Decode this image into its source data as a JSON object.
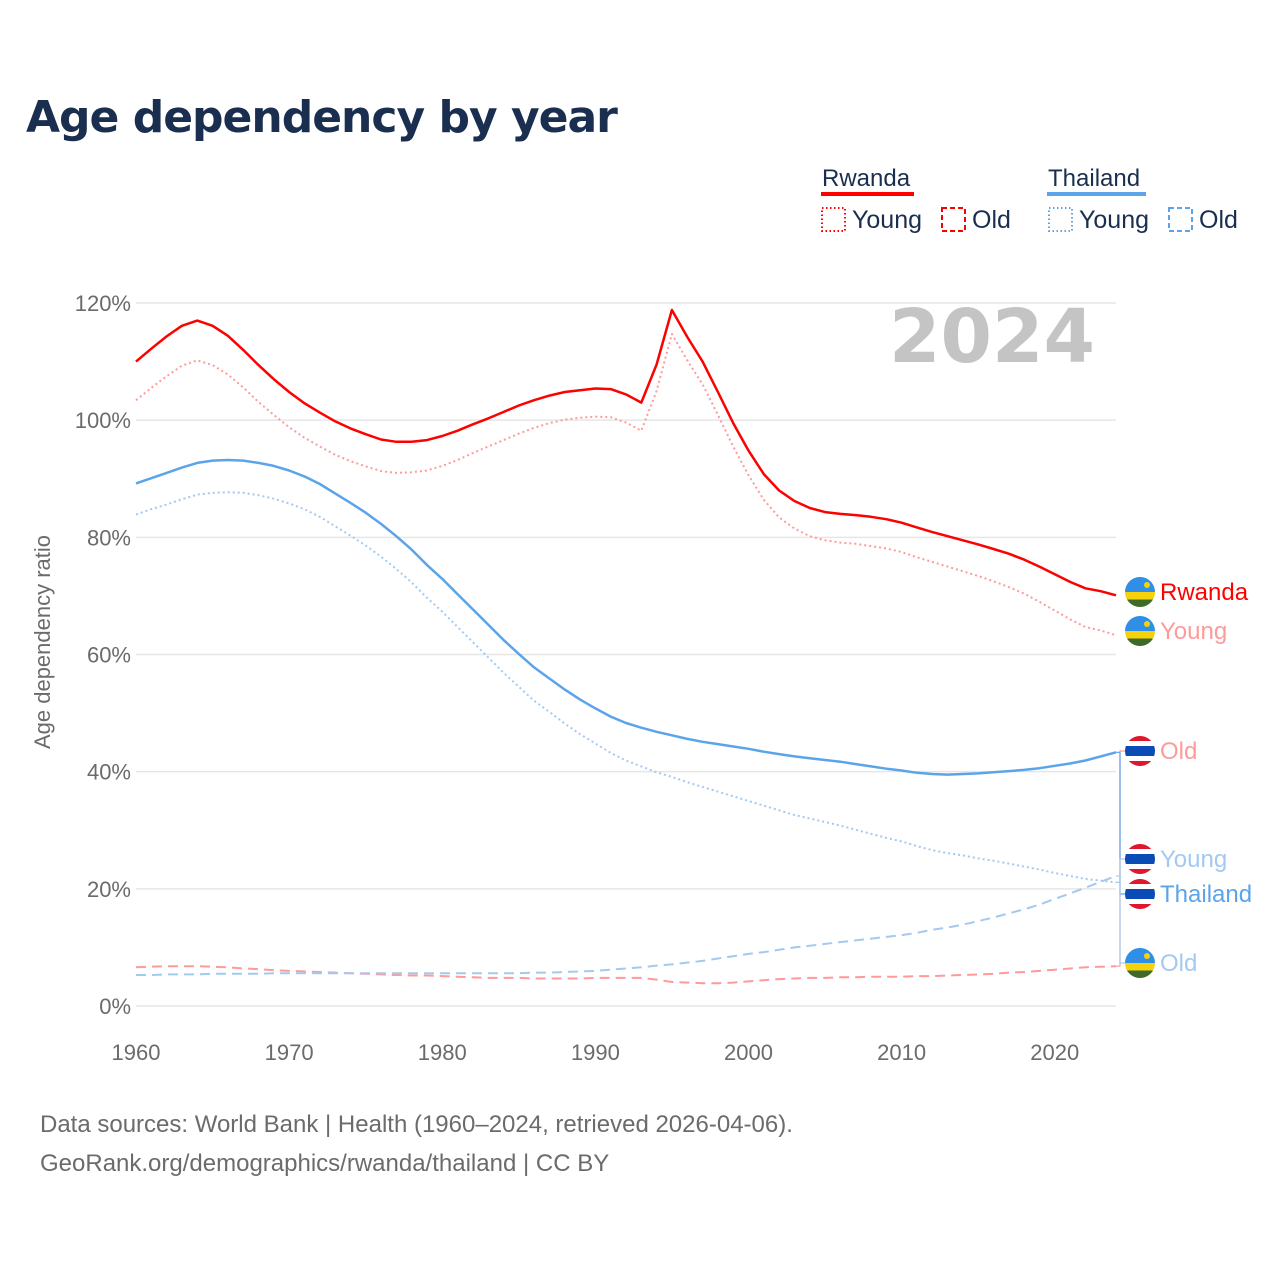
{
  "chart_data": {
    "type": "line",
    "title": "Age dependency by year",
    "ylabel": "Age dependency ratio",
    "xlabel": "",
    "xlim": [
      1960,
      2024
    ],
    "ylim": [
      0,
      120
    ],
    "x_ticks": [
      "1960",
      "1970",
      "1980",
      "1990",
      "2000",
      "2010",
      "2020"
    ],
    "y_ticks": [
      "0%",
      "20%",
      "40%",
      "60%",
      "80%",
      "100%",
      "120%"
    ],
    "grid": true,
    "current_year": "2024",
    "legend": {
      "placement": "top-right",
      "groups": [
        {
          "country": "Rwanda",
          "items": [
            "Young",
            "Old"
          ]
        },
        {
          "country": "Thailand",
          "items": [
            "Young",
            "Old"
          ]
        }
      ]
    },
    "colors": {
      "rwanda": "#ff0000",
      "rwanda_light": "#ff9a9a",
      "thailand": "#5ba4ea",
      "thailand_light": "#a3c9f1"
    },
    "x": [
      1960,
      1961,
      1962,
      1963,
      1964,
      1965,
      1966,
      1967,
      1968,
      1969,
      1970,
      1971,
      1972,
      1973,
      1974,
      1975,
      1976,
      1977,
      1978,
      1979,
      1980,
      1981,
      1982,
      1983,
      1984,
      1985,
      1986,
      1987,
      1988,
      1989,
      1990,
      1991,
      1992,
      1993,
      1994,
      1995,
      1996,
      1997,
      1998,
      1999,
      2000,
      2001,
      2002,
      2003,
      2004,
      2005,
      2006,
      2007,
      2008,
      2009,
      2010,
      2011,
      2012,
      2013,
      2014,
      2015,
      2016,
      2017,
      2018,
      2019,
      2020,
      2021,
      2022,
      2023,
      2024
    ],
    "series": [
      {
        "name": "Rwanda",
        "end_label": "Rwanda",
        "style": "solid",
        "color": "#ff0000",
        "values": [
          110,
          112.2,
          114.3,
          116.1,
          117,
          116.1,
          114.4,
          112,
          109.4,
          107,
          104.8,
          102.9,
          101.3,
          99.8,
          98.6,
          97.6,
          96.7,
          96.3,
          96.3,
          96.6,
          97.3,
          98.2,
          99.3,
          100.3,
          101.4,
          102.5,
          103.4,
          104.2,
          104.8,
          105.1,
          105.4,
          105.3,
          104.4,
          103,
          109.5,
          118.8,
          114.2,
          110,
          104.8,
          99.5,
          94.8,
          90.8,
          88,
          86.2,
          85,
          84.3,
          84,
          83.8,
          83.5,
          83.1,
          82.5,
          81.7,
          80.9,
          80.2,
          79.5,
          78.8,
          78,
          77.2,
          76.2,
          75,
          73.7,
          72.4,
          71.3,
          70.8,
          70.1
        ]
      },
      {
        "name": "Rwanda Young",
        "end_label": "Young",
        "style": "dotted",
        "color": "#ff9a9a",
        "values": [
          103.4,
          105.5,
          107.5,
          109.3,
          110.2,
          109.4,
          107.8,
          105.6,
          103.1,
          100.9,
          98.8,
          97,
          95.5,
          94.1,
          93,
          92.1,
          91.3,
          91,
          91.1,
          91.4,
          92.2,
          93.2,
          94.4,
          95.5,
          96.6,
          97.7,
          98.7,
          99.5,
          100.1,
          100.4,
          100.6,
          100.5,
          99.6,
          98.2,
          105,
          114.7,
          110.2,
          106.1,
          100.9,
          95.5,
          90.6,
          86.4,
          83.4,
          81.5,
          80.2,
          79.5,
          79.1,
          78.9,
          78.5,
          78.1,
          77.5,
          76.6,
          75.8,
          75,
          74.2,
          73.4,
          72.5,
          71.5,
          70.4,
          69,
          67.5,
          66,
          64.7,
          64.1,
          63.3
        ]
      },
      {
        "name": "Rwanda Old",
        "end_label": "Old",
        "style": "dashed",
        "color": "#ff9a9a",
        "values": [
          6.6,
          6.7,
          6.8,
          6.8,
          6.8,
          6.7,
          6.6,
          6.4,
          6.3,
          6.1,
          6,
          5.9,
          5.8,
          5.7,
          5.6,
          5.5,
          5.4,
          5.3,
          5.2,
          5.2,
          5.1,
          5,
          4.9,
          4.8,
          4.8,
          4.8,
          4.7,
          4.7,
          4.7,
          4.7,
          4.8,
          4.8,
          4.8,
          4.8,
          4.5,
          4.1,
          4,
          3.9,
          3.9,
          4,
          4.2,
          4.4,
          4.6,
          4.7,
          4.8,
          4.8,
          4.9,
          4.9,
          5,
          5,
          5,
          5.1,
          5.1,
          5.2,
          5.3,
          5.4,
          5.5,
          5.7,
          5.8,
          6,
          6.2,
          6.4,
          6.6,
          6.7,
          6.8
        ]
      },
      {
        "name": "Thailand",
        "end_label": "Thailand",
        "style": "solid",
        "color": "#5ba4ea",
        "values": [
          89.2,
          90.1,
          91,
          91.9,
          92.7,
          93.1,
          93.2,
          93.1,
          92.7,
          92.2,
          91.4,
          90.4,
          89.1,
          87.5,
          85.9,
          84.2,
          82.3,
          80.2,
          77.9,
          75.3,
          72.9,
          70.3,
          67.7,
          65.1,
          62.5,
          60.1,
          57.8,
          55.9,
          54,
          52.3,
          50.8,
          49.4,
          48.3,
          47.5,
          46.8,
          46.2,
          45.6,
          45.1,
          44.7,
          44.3,
          43.9,
          43.4,
          43,
          42.6,
          42.3,
          42,
          41.7,
          41.3,
          40.9,
          40.5,
          40.2,
          39.8,
          39.6,
          39.5,
          39.6,
          39.7,
          39.9,
          40.1,
          40.3,
          40.6,
          41,
          41.4,
          41.9,
          42.6,
          43.3
        ]
      },
      {
        "name": "Thailand Young",
        "end_label": "Young",
        "style": "dotted",
        "color": "#a3c9f1",
        "values": [
          83.9,
          84.8,
          85.6,
          86.5,
          87.3,
          87.6,
          87.7,
          87.6,
          87.2,
          86.6,
          85.8,
          84.8,
          83.5,
          81.9,
          80.3,
          78.6,
          76.7,
          74.6,
          72.3,
          69.7,
          67.3,
          64.7,
          62.1,
          59.5,
          56.9,
          54.5,
          52.1,
          50.2,
          48.2,
          46.4,
          44.8,
          43.2,
          41.9,
          40.9,
          39.9,
          39.1,
          38.2,
          37.4,
          36.6,
          35.8,
          35,
          34.2,
          33.4,
          32.6,
          32,
          31.4,
          30.8,
          30.1,
          29.4,
          28.7,
          28.1,
          27.3,
          26.6,
          26.1,
          25.7,
          25.2,
          24.8,
          24.3,
          23.8,
          23.3,
          22.7,
          22.2,
          21.7,
          21.4,
          21.1
        ]
      },
      {
        "name": "Thailand Old",
        "end_label": "Old",
        "style": "dashed",
        "color": "#a3c9f1",
        "values": [
          5.3,
          5.3,
          5.4,
          5.4,
          5.4,
          5.5,
          5.5,
          5.5,
          5.5,
          5.6,
          5.6,
          5.6,
          5.6,
          5.6,
          5.6,
          5.6,
          5.6,
          5.6,
          5.6,
          5.6,
          5.6,
          5.6,
          5.6,
          5.6,
          5.6,
          5.6,
          5.7,
          5.7,
          5.8,
          5.9,
          6,
          6.2,
          6.4,
          6.6,
          6.9,
          7.1,
          7.4,
          7.7,
          8.1,
          8.5,
          8.9,
          9.2,
          9.6,
          10,
          10.3,
          10.6,
          10.9,
          11.2,
          11.5,
          11.8,
          12.1,
          12.5,
          13,
          13.4,
          13.9,
          14.5,
          15.1,
          15.8,
          16.5,
          17.3,
          18.3,
          19.2,
          20.2,
          21.2,
          22.2
        ]
      }
    ]
  },
  "footer": {
    "line1": "Data sources: World Bank | Health (1960–2024, retrieved 2026-04-06).",
    "line2": "GeoRank.org/demographics/rwanda/thailand | CC BY"
  }
}
